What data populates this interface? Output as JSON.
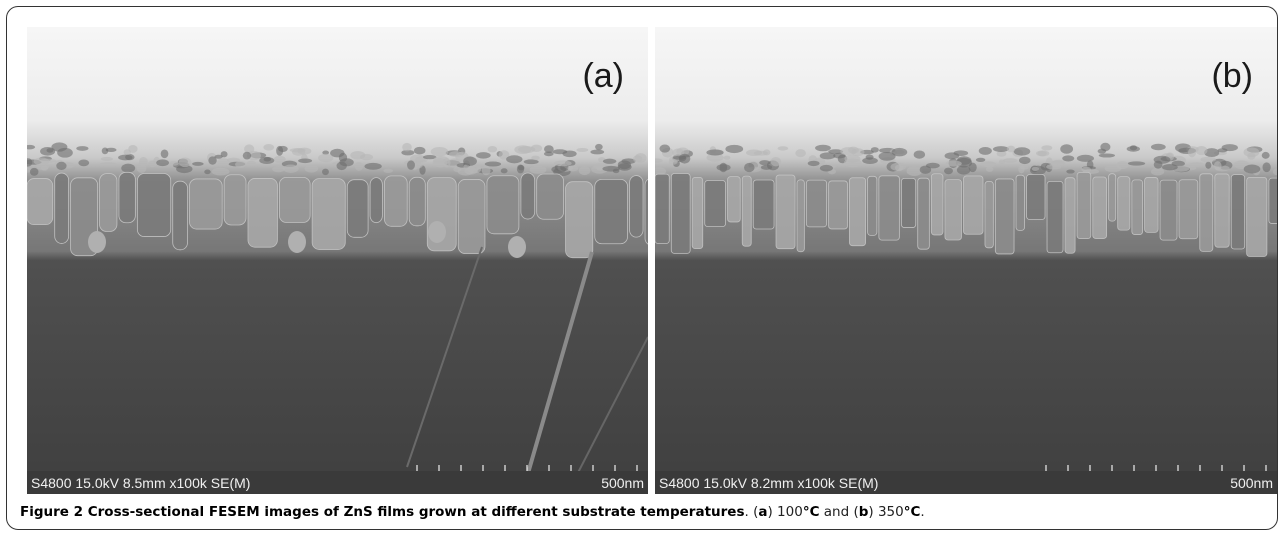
{
  "figure": {
    "panels": [
      {
        "label": "(a)",
        "info": "S4800 15.0kV 8.5mm x100k SE(M)",
        "scale": "500nm"
      },
      {
        "label": "(b)",
        "info": "S4800 15.0kV 8.2mm x100k SE(M)",
        "scale": "500nm"
      }
    ],
    "caption": {
      "title": "Figure 2 Cross-sectional FESEM images of ZnS films grown at different substrate temperatures",
      "parts": [
        ". (",
        "a",
        ") 100",
        "°C",
        " and (",
        "b",
        ") 350",
        "°C",
        "."
      ]
    }
  }
}
